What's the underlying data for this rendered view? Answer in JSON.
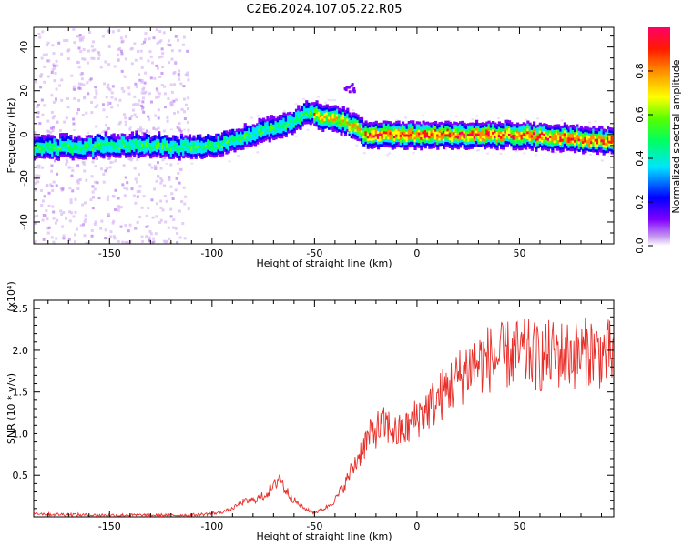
{
  "title": "C2E6.2024.107.05.22.R05",
  "chart_data": [
    {
      "type": "heatmap",
      "xlabel": "Height of straight line (km)",
      "ylabel": "Frequency (Hz)",
      "xlim": [
        -187,
        96
      ],
      "ylim": [
        -50,
        49
      ],
      "xticks": [
        -150,
        -100,
        -50,
        0,
        50
      ],
      "yticks": [
        -40,
        -20,
        0,
        20,
        40
      ],
      "colorbar": {
        "label": "Normalized spectral amplitude",
        "range": [
          0,
          1
        ],
        "ticks": [
          0.0,
          0.2,
          0.4,
          0.6,
          0.8
        ]
      },
      "ridge": {
        "x": [
          -187,
          -170,
          -150,
          -130,
          -115,
          -100,
          -90,
          -80,
          -70,
          -60,
          -55,
          -50,
          -45,
          -40,
          -35,
          -30,
          -25,
          -20,
          -10,
          0,
          10,
          20,
          30,
          40,
          50,
          60,
          70,
          80,
          96
        ],
        "frequency": [
          -6,
          -6,
          -5,
          -5,
          -6,
          -5,
          -3,
          0,
          3,
          6,
          9,
          10,
          8,
          7,
          6,
          3,
          0,
          0,
          0,
          0,
          0,
          0,
          0,
          0,
          0,
          -1,
          -1,
          -2,
          -3
        ]
      }
    },
    {
      "type": "line",
      "xlabel": "Height of straight line (km)",
      "ylabel": "SNR (10 * v/v)",
      "y_multiplier": "(x10⁴)",
      "xlim": [
        -187,
        96
      ],
      "ylim": [
        0,
        2.6
      ],
      "xticks": [
        -150,
        -100,
        -50,
        0,
        50
      ],
      "yticks": [
        0.5,
        1.0,
        1.5,
        2.0,
        2.5
      ],
      "series": [
        {
          "color": "#e8302b",
          "x": [
            -187,
            -180,
            -170,
            -160,
            -150,
            -140,
            -130,
            -120,
            -110,
            -100,
            -95,
            -90,
            -85,
            -80,
            -75,
            -70,
            -67,
            -65,
            -60,
            -55,
            -50,
            -45,
            -40,
            -35,
            -30,
            -25,
            -20,
            -15,
            -10,
            -5,
            0,
            5,
            10,
            15,
            20,
            25,
            30,
            35,
            40,
            45,
            50,
            55,
            60,
            65,
            70,
            75,
            80,
            85,
            90,
            96
          ],
          "values": [
            0.05,
            0.03,
            0.03,
            0.02,
            0.02,
            0.02,
            0.02,
            0.02,
            0.02,
            0.04,
            0.06,
            0.1,
            0.18,
            0.2,
            0.25,
            0.35,
            0.5,
            0.35,
            0.2,
            0.1,
            0.05,
            0.1,
            0.2,
            0.4,
            0.65,
            0.9,
            1.05,
            1.1,
            1.0,
            1.05,
            1.2,
            1.3,
            1.4,
            1.55,
            1.65,
            1.8,
            1.85,
            1.9,
            1.9,
            1.95,
            1.95,
            1.95,
            1.9,
            1.95,
            1.95,
            1.95,
            1.95,
            2.0,
            1.95,
            1.95
          ]
        }
      ]
    }
  ]
}
